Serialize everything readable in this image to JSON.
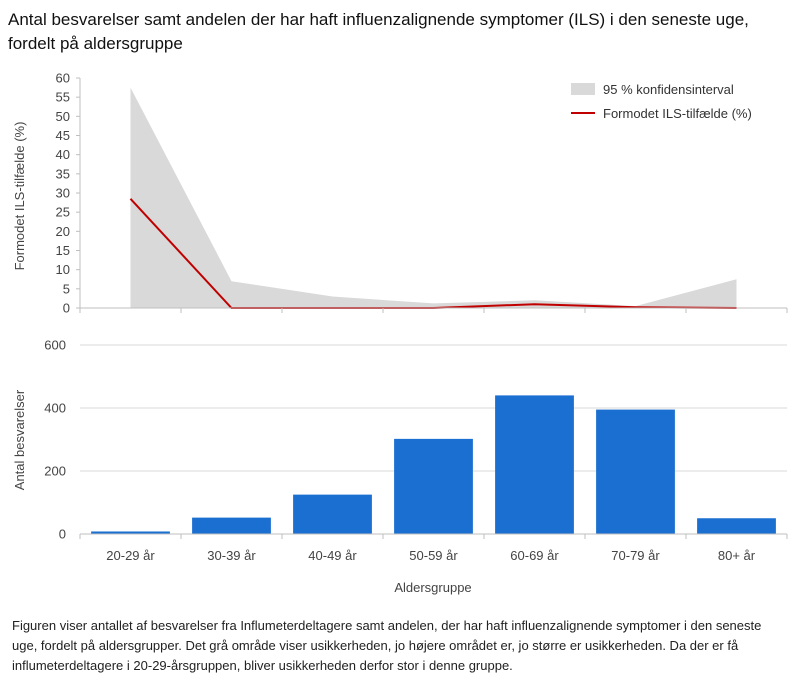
{
  "title": "Antal besvarelser samt andelen der har haft influenzalignende symptomer (ILS) i den seneste uge, fordelt på aldersgruppe",
  "caption": "Figuren viser antallet af besvarelser fra Influmeterdeltagere samt andelen, der har haft influenzalignende symptomer i den seneste uge, fordelt på aldersgrupper. Det grå område viser usikkerheden,  jo højere området er, jo større er usikkerheden. Da der er få influmeterdeltagere  i 20-29-årsgruppen, bliver usikkerheden derfor stor i denne gruppe.",
  "colors": {
    "band": "#d9d9d9",
    "line": "#c00000",
    "bar": "#1a6fd0",
    "grid": "#d9d9d9",
    "axis": "#bfbfbf"
  },
  "chart_data": [
    {
      "type": "area",
      "categories": [
        "20-29 år",
        "30-39 år",
        "40-49 år",
        "50-59 år",
        "60-69 år",
        "70-79 år",
        "80+ år"
      ],
      "ylabel": "Formodet ILS-tilfælde (%)",
      "ylim": [
        0,
        60
      ],
      "yticks": [
        0,
        5,
        10,
        15,
        20,
        25,
        30,
        35,
        40,
        45,
        50,
        55,
        60
      ],
      "grid": false,
      "legend_position": "top-right",
      "series": [
        {
          "name": "95 % konfidensinterval",
          "kind": "band",
          "lower": [
            0,
            0,
            0,
            0,
            0,
            0,
            0
          ],
          "upper": [
            57.5,
            7,
            3,
            1.2,
            2,
            0.5,
            7.5
          ]
        },
        {
          "name": "Formodet ILS-tilfælde (%)",
          "kind": "line",
          "values": [
            28.5,
            0,
            0,
            0,
            1,
            0.2,
            0
          ]
        }
      ]
    },
    {
      "type": "bar",
      "categories": [
        "20-29 år",
        "30-39 år",
        "40-49 år",
        "50-59 år",
        "60-69 år",
        "70-79 år",
        "80+ år"
      ],
      "values": [
        8,
        52,
        125,
        302,
        440,
        395,
        50
      ],
      "xlabel": "Aldersgruppe",
      "ylabel": "Antal besvarelser",
      "ylim": [
        0,
        600
      ],
      "yticks": [
        0,
        200,
        400,
        600
      ],
      "grid": true
    }
  ]
}
